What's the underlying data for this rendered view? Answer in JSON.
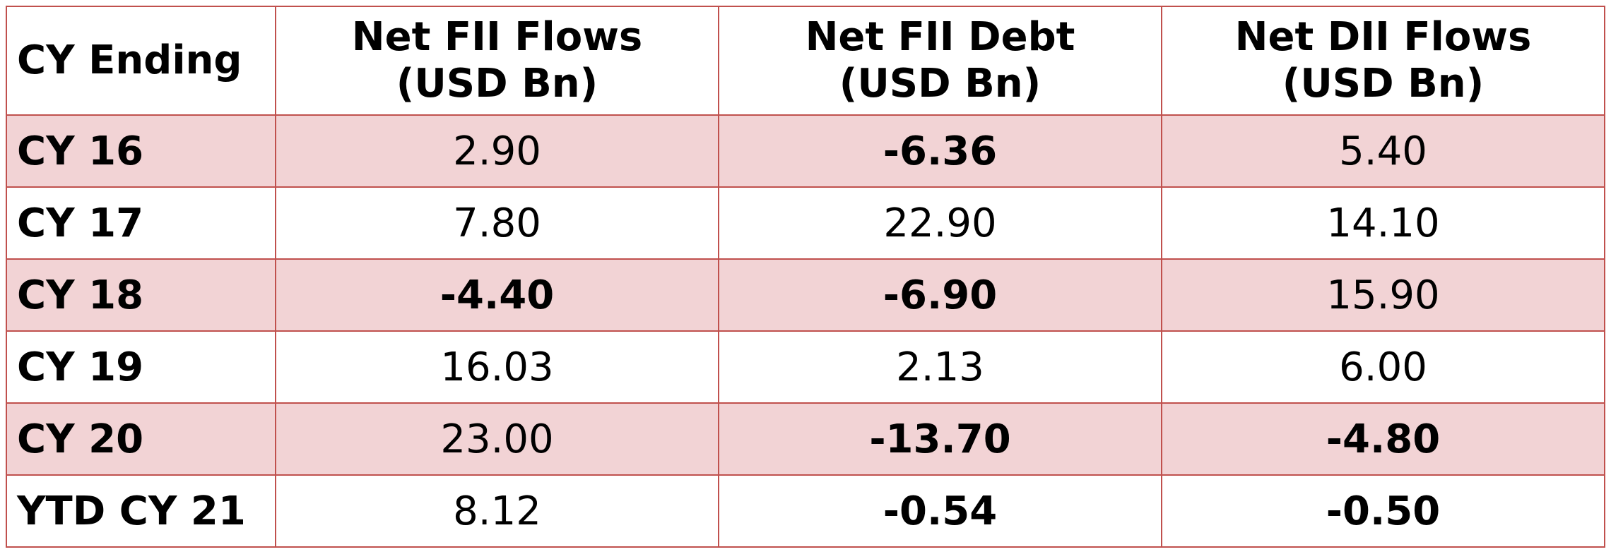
{
  "table": {
    "headers": [
      {
        "line1": "CY Ending",
        "line2": ""
      },
      {
        "line1": "Net FII Flows",
        "line2": "(USD Bn)"
      },
      {
        "line1": "Net FII Debt",
        "line2": "(USD Bn)"
      },
      {
        "line1": "Net DII Flows",
        "line2": "(USD Bn)"
      }
    ],
    "rows": [
      {
        "label": "CY 16",
        "fii_flows": "2.90",
        "fii_debt": "-6.36",
        "dii_flows": "5.40"
      },
      {
        "label": "CY 17",
        "fii_flows": "7.80",
        "fii_debt": "22.90",
        "dii_flows": "14.10"
      },
      {
        "label": "CY 18",
        "fii_flows": "-4.40",
        "fii_debt": "-6.90",
        "dii_flows": "15.90"
      },
      {
        "label": "CY 19",
        "fii_flows": "16.03",
        "fii_debt": "2.13",
        "dii_flows": "6.00"
      },
      {
        "label": "CY 20",
        "fii_flows": "23.00",
        "fii_debt": "-13.70",
        "dii_flows": "-4.80"
      },
      {
        "label": "YTD CY 21",
        "fii_flows": "8.12",
        "fii_debt": "-0.54",
        "dii_flows": "-0.50"
      }
    ],
    "colors": {
      "border": "#c0504d",
      "shaded_row": "#f2d3d5",
      "text": "#000000"
    }
  }
}
